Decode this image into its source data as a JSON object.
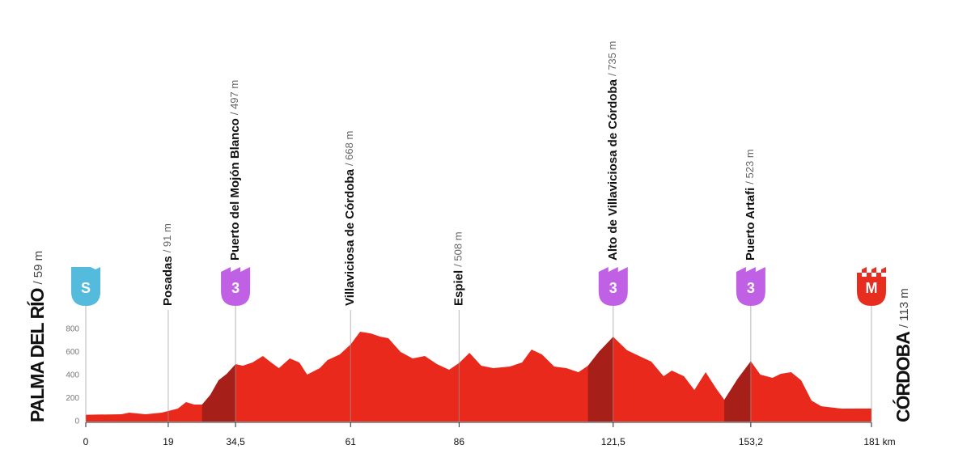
{
  "chart_data": {
    "type": "area",
    "color": "#e8291c",
    "climb_color": "#a61f18",
    "x": [
      0,
      8.2,
      10,
      13.8,
      17.5,
      19,
      21.2,
      23.1,
      25,
      26.8,
      28.7,
      30.6,
      32.5,
      34.5,
      36.2,
      38.4,
      40.8,
      42.7,
      44.5,
      47,
      49.2,
      51,
      53.9,
      55.7,
      58.5,
      61,
      63.2,
      65.6,
      67.8,
      69.7,
      72.5,
      75.3,
      78.1,
      80.9,
      83.7,
      86,
      88.4,
      91.1,
      93.9,
      97.7,
      100.5,
      102.7,
      105.1,
      107.9,
      110.7,
      113.5,
      115.7,
      118.2,
      121.5,
      124.7,
      127.5,
      130.3,
      133.1,
      135,
      137.8,
      140.2,
      142.8,
      145.2,
      147.1,
      150.2,
      153.2,
      155.4,
      158.2,
      160.1,
      162.5,
      164.8,
      167.2,
      169.4,
      174.1,
      181
    ],
    "values": [
      59,
      63,
      77,
      63,
      77,
      91,
      112,
      168,
      147,
      147,
      232,
      358,
      414,
      497,
      484,
      512,
      568,
      512,
      463,
      547,
      512,
      407,
      463,
      533,
      582,
      668,
      779,
      765,
      737,
      723,
      604,
      547,
      568,
      498,
      449,
      508,
      596,
      484,
      463,
      477,
      512,
      625,
      582,
      477,
      463,
      428,
      484,
      604,
      735,
      618,
      568,
      519,
      393,
      442,
      393,
      274,
      428,
      288,
      189,
      372,
      523,
      407,
      379,
      414,
      428,
      358,
      182,
      133,
      112,
      113
    ],
    "climbs": [
      [
        26.8,
        34.5
      ],
      [
        115.7,
        121.5
      ],
      [
        147.1,
        153.2
      ]
    ],
    "xlim": [
      0,
      181
    ],
    "ylim": [
      0,
      800
    ],
    "xticks": [
      0,
      19,
      {
        "value": 34.5,
        "label": "34,5"
      },
      61,
      86,
      {
        "value": 121.5,
        "label": "121,5"
      },
      {
        "value": 153.2,
        "label": "153,2"
      },
      {
        "value": 181,
        "label": "181 km"
      }
    ],
    "yticks": [
      0,
      200,
      400,
      600,
      800
    ],
    "waypoints": [
      {
        "km": 0,
        "name": "PALMA DEL RÍO",
        "altitude_label": "/ 59 m",
        "badge": "S",
        "badge_color": "#55bbdc",
        "kind": "start"
      },
      {
        "km": 19,
        "name": "Posadas",
        "altitude_label": "/ 91 m",
        "kind": "point"
      },
      {
        "km": 34.5,
        "name": "Puerto del Mojón Blanco",
        "altitude_label": "/ 497 m",
        "badge": "3",
        "badge_color": "#c060e4",
        "kind": "climb"
      },
      {
        "km": 61,
        "name": "Villaviciosa de Córdoba",
        "altitude_label": "/ 668 m",
        "kind": "point"
      },
      {
        "km": 86,
        "name": "Espiel",
        "altitude_label": "/ 508 m",
        "kind": "point"
      },
      {
        "km": 121.5,
        "name": "Alto de Villaviciosa de Córdoba",
        "altitude_label": "/ 735 m",
        "badge": "3",
        "badge_color": "#c060e4",
        "kind": "climb"
      },
      {
        "km": 153.2,
        "name": "Puerto Artafi",
        "altitude_label": "/ 523 m",
        "badge": "3",
        "badge_color": "#c060e4",
        "kind": "climb"
      },
      {
        "km": 181,
        "name": "CÓRDOBA",
        "altitude_label": "/ 113 m",
        "badge": "M",
        "badge_color": "#e62d20",
        "kind": "finish"
      }
    ]
  }
}
